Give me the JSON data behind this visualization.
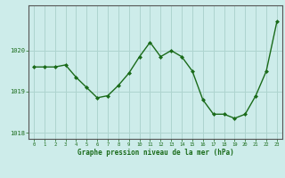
{
  "x": [
    0,
    1,
    2,
    3,
    4,
    5,
    6,
    7,
    8,
    9,
    10,
    11,
    12,
    13,
    14,
    15,
    16,
    17,
    18,
    19,
    20,
    21,
    22,
    23
  ],
  "y": [
    1019.6,
    1019.6,
    1019.6,
    1019.65,
    1019.35,
    1019.1,
    1018.85,
    1018.9,
    1019.15,
    1019.45,
    1019.85,
    1020.2,
    1019.85,
    1020.0,
    1019.85,
    1019.5,
    1018.8,
    1018.45,
    1018.45,
    1018.35,
    1018.45,
    1018.9,
    1019.5,
    1020.7
  ],
  "line_color": "#1a6b1a",
  "marker_color": "#1a6b1a",
  "bg_color": "#cdecea",
  "grid_color": "#aed4cf",
  "xlabel": "Graphe pression niveau de la mer (hPa)",
  "xlabel_color": "#1a6b1a",
  "tick_color": "#1a6b1a",
  "axis_color": "#555555",
  "ylim": [
    1017.85,
    1021.1
  ],
  "yticks": [
    1018,
    1019,
    1020
  ],
  "xlim": [
    -0.5,
    23.5
  ],
  "xticks": [
    0,
    1,
    2,
    3,
    4,
    5,
    6,
    7,
    8,
    9,
    10,
    11,
    12,
    13,
    14,
    15,
    16,
    17,
    18,
    19,
    20,
    21,
    22,
    23
  ]
}
